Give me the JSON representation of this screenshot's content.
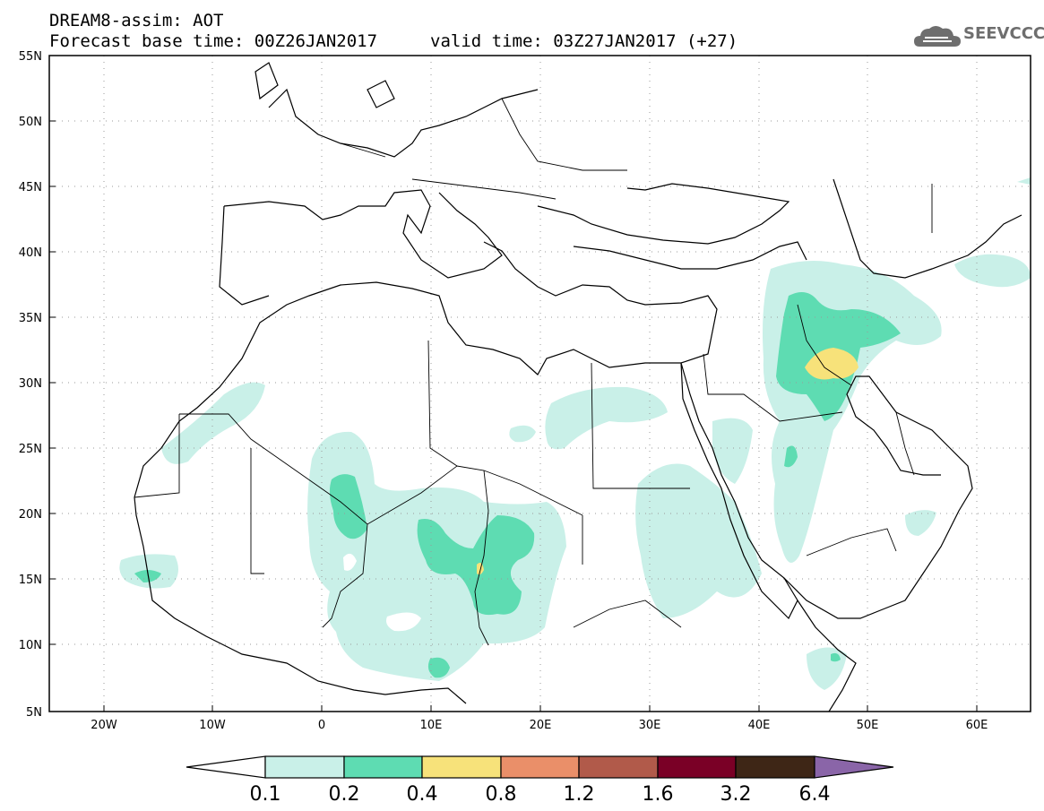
{
  "header": {
    "title": "DREAM8-assim: AOT",
    "base_time": "Forecast base time: 00Z26JAN2017",
    "valid_time": "valid time: 03Z27JAN2017 (+27)"
  },
  "logo": {
    "text": "SEEVCCC",
    "icon": "cloud-icon"
  },
  "axes": {
    "lat_labels": [
      "55N",
      "50N",
      "45N",
      "40N",
      "35N",
      "30N",
      "25N",
      "20N",
      "15N",
      "10N",
      "5N"
    ],
    "lon_labels": [
      "20W",
      "10W",
      "0",
      "10E",
      "20E",
      "30E",
      "40E",
      "50E",
      "60E"
    ],
    "lat_range": [
      5,
      55
    ],
    "lon_range": [
      -25,
      65
    ]
  },
  "colorbar": {
    "labels": [
      "0.1",
      "0.2",
      "0.4",
      "0.8",
      "1.2",
      "1.6",
      "3.2",
      "6.4"
    ],
    "colors": [
      "#ffffff",
      "#c9f0e8",
      "#5edcb2",
      "#f7e27a",
      "#ea8f69",
      "#b15a4a",
      "#7a0026",
      "#3e2616",
      "#8a65a8"
    ]
  },
  "colors": {
    "frame": "#000000",
    "grid": "#9a9a9a",
    "coast": "#000000"
  }
}
